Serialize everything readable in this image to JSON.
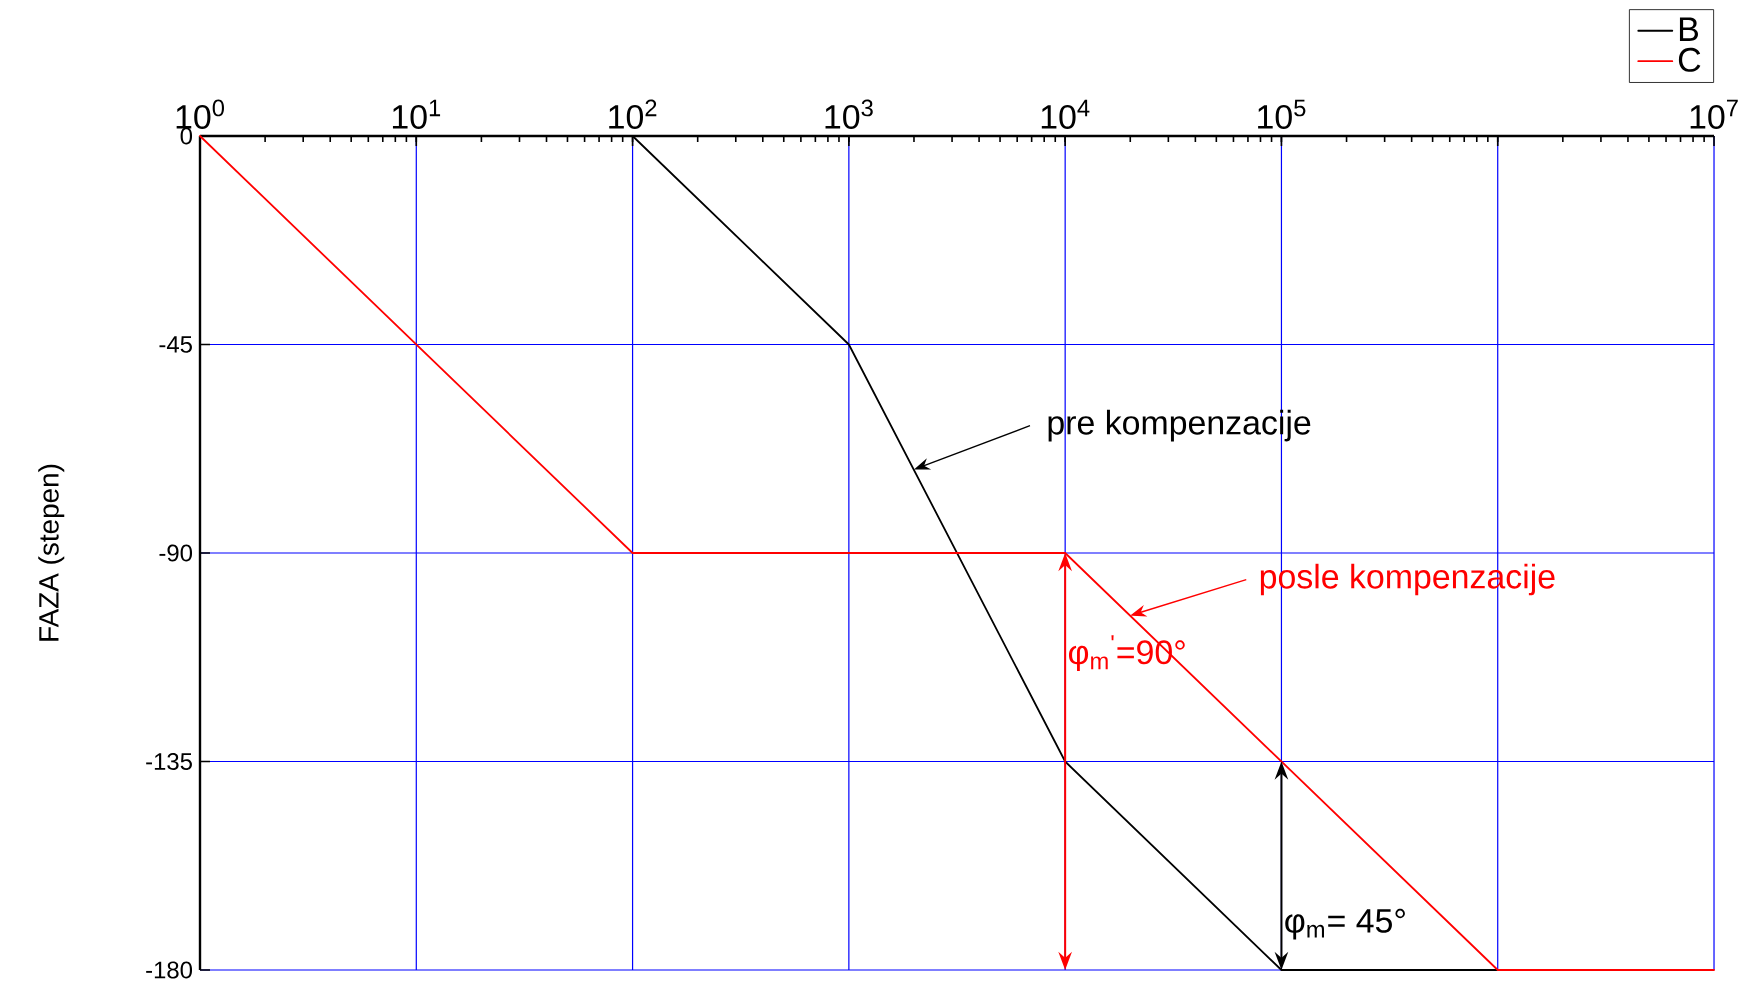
{
  "chart_data": {
    "type": "line",
    "ylabel": "FAZA (stepen)",
    "log": "x",
    "xlim": [
      1,
      10000000
    ],
    "ylim": [
      -180,
      0
    ],
    "xticks": [
      {
        "value": 1,
        "label": "10$^{0}$"
      },
      {
        "value": 10,
        "label": "10$^{1}$"
      },
      {
        "value": 100,
        "label": "10$^{2}$"
      },
      {
        "value": 1000,
        "label": "10$^{3}$"
      },
      {
        "value": 10000,
        "label": "10$^{4}$"
      },
      {
        "value": 100000,
        "label": "10$^{5}$"
      },
      {
        "value": 1000000,
        "label": null
      },
      {
        "value": 10000000,
        "label": "10$^{7}$"
      }
    ],
    "yticks": [
      0,
      -45,
      -90,
      -135,
      -180
    ],
    "grid": true,
    "legend": "top right",
    "series": [
      {
        "name": "B",
        "color": "#000000",
        "x": [
          100,
          1000,
          10000,
          100000,
          1000000
        ],
        "values": [
          0,
          -45,
          -135,
          -180,
          -180
        ]
      },
      {
        "name": "C",
        "color": "#ff0000",
        "x": [
          1,
          100,
          10000,
          1000000,
          10000000
        ],
        "values": [
          0,
          -90,
          -90,
          -180,
          -180
        ]
      }
    ],
    "annotations": [
      {
        "text": "pre kompenzacije",
        "x": 2000,
        "y": -72
      },
      {
        "text": "posle kompenzacije",
        "x": 20000,
        "y": -103.5
      },
      {
        "text": "φ$_{m}$$^{'}$=90°",
        "x": 10000,
        "y": -90
      },
      {
        "text": "φ$_{m}$= 45°",
        "x": 100000,
        "y": -135
      }
    ]
  }
}
